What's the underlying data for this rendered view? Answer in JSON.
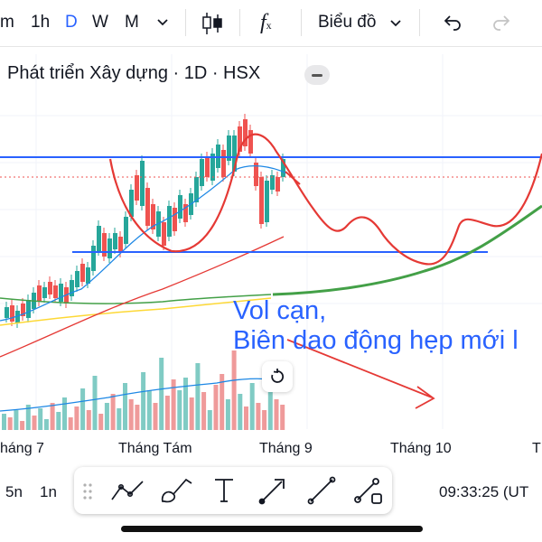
{
  "toolbar": {
    "minute_label": "m",
    "hour_label": "1h",
    "day_label": "D",
    "week_label": "W",
    "month_label": "M",
    "chart_type_label": "Biểu đồ",
    "candle_icon": "candlestick-icon",
    "fx_icon": "indicator-fx-icon",
    "undo_icon": "undo-icon",
    "redo_icon": "redo-icon",
    "active_color": "#2962ff"
  },
  "legend": {
    "title": "Phát triển Xây dựng · 1D · HSX"
  },
  "annotations": {
    "line1": "Vol cạn,",
    "line2": "Biên dao động hẹp mới l"
  },
  "x_axis": {
    "labels": [
      "háng 7",
      "Tháng Tám",
      "Tháng 9",
      "Tháng 10",
      "T"
    ]
  },
  "bottom": {
    "range_5d": "5n",
    "range_1d": "1n",
    "clock": "09:33:25 (UT"
  },
  "drawing_tools": [
    "trend-lines-icon",
    "brush-icon",
    "text-icon",
    "arrow-icon",
    "line-icon",
    "ruler-icon"
  ],
  "colors": {
    "up": "#26a69a",
    "down": "#ef5350",
    "hline": "#2962ff",
    "red_curve": "#e53935",
    "green_ma": "#43a047",
    "yellow_ma": "#fdd835",
    "blue_ma": "#1e88e5"
  }
}
